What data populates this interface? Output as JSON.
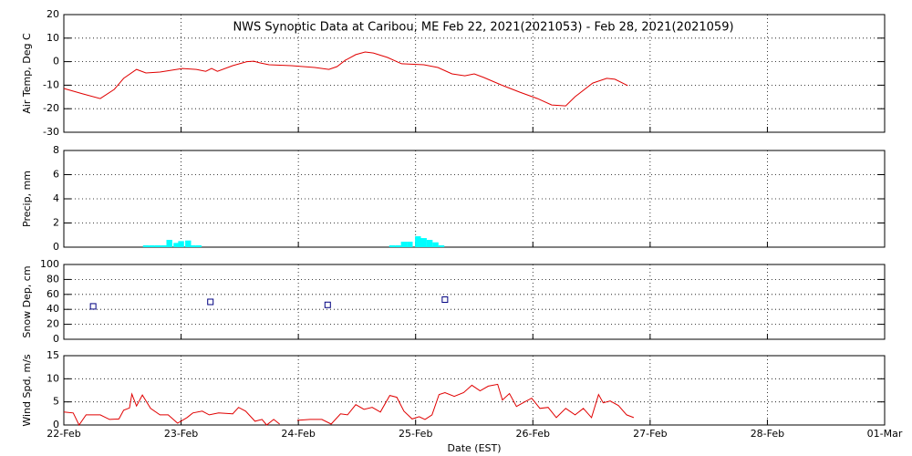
{
  "chart_data": [
    {
      "type": "line",
      "title": "NWS Synoptic Data at Caribou, ME   Feb 22, 2021(2021053) - Feb 28, 2021(2021059)",
      "ylabel": "Air Temp, Deg C",
      "ylim": [
        -30,
        20
      ],
      "yticks": [
        -30,
        -20,
        -10,
        0,
        10,
        20
      ],
      "grid": true,
      "series": [
        {
          "color": "#e00000",
          "x": [
            0,
            0.16,
            0.31,
            0.43,
            0.51,
            0.62,
            0.7,
            0.82,
            1.01,
            1.13,
            1.21,
            1.26,
            1.31,
            1.44,
            1.56,
            1.62,
            1.67,
            1.75,
            1.94,
            2.14,
            2.26,
            2.33,
            2.4,
            2.49,
            2.57,
            2.64,
            2.76,
            2.88,
            3.07,
            3.19,
            3.31,
            3.42,
            3.5,
            3.58,
            3.73,
            3.89,
            4.04,
            4.16,
            4.28,
            4.36,
            4.51,
            4.63,
            4.7,
            4.81
          ],
          "values": [
            -11.4,
            -13.7,
            -15.7,
            -11.8,
            -7.1,
            -3.3,
            -4.8,
            -4.4,
            -2.9,
            -3.3,
            -4.1,
            -2.9,
            -4.1,
            -1.7,
            0,
            0.2,
            -0.5,
            -1.3,
            -1.7,
            -2.5,
            -3.3,
            -2.1,
            0.6,
            3,
            4.1,
            3.7,
            1.8,
            -0.9,
            -1.3,
            -2.5,
            -5.2,
            -6,
            -5.2,
            -6.7,
            -9.9,
            -13,
            -15.7,
            -18.4,
            -18.8,
            -14.9,
            -9.1,
            -7.1,
            -7.5,
            -10.2
          ]
        }
      ]
    },
    {
      "type": "bar",
      "ylabel": "Precip, mm",
      "ylim": [
        0,
        8
      ],
      "yticks": [
        0,
        2,
        4,
        6,
        8
      ],
      "grid": true,
      "series": [
        {
          "color": "#00ffff",
          "x": [
            0.7,
            0.75,
            0.8,
            0.85,
            0.9,
            0.96,
            1.0,
            1.06,
            1.1,
            1.15,
            2.8,
            2.85,
            2.9,
            2.95,
            3.02,
            3.07,
            3.12,
            3.17,
            3.22
          ],
          "values": [
            0.15,
            0.15,
            0.15,
            0.15,
            0.6,
            0.35,
            0.5,
            0.55,
            0.15,
            0.15,
            0.15,
            0.15,
            0.45,
            0.45,
            0.9,
            0.75,
            0.6,
            0.4,
            0.15
          ]
        }
      ]
    },
    {
      "type": "scatter",
      "ylabel": "Snow Dep, cm",
      "ylim": [
        0,
        100
      ],
      "yticks": [
        0,
        20,
        40,
        60,
        80,
        100
      ],
      "grid": true,
      "series": [
        {
          "color": "#000080",
          "x": [
            0.25,
            1.25,
            2.25,
            3.25
          ],
          "values": [
            44,
            50,
            46,
            53
          ]
        }
      ]
    },
    {
      "type": "line",
      "ylabel": "Wind Spd, m/s",
      "xlabel": "Date (EST)",
      "ylim": [
        0,
        15
      ],
      "yticks": [
        0,
        5,
        10,
        15
      ],
      "grid": true,
      "xlim": [
        0,
        7
      ],
      "xticks": [
        {
          "value": 0,
          "label": "22-Feb"
        },
        {
          "value": 1,
          "label": "23-Feb"
        },
        {
          "value": 2,
          "label": "24-Feb"
        },
        {
          "value": 3,
          "label": "25-Feb"
        },
        {
          "value": 4,
          "label": "26-Feb"
        },
        {
          "value": 5,
          "label": "27-Feb"
        },
        {
          "value": 6,
          "label": "28-Feb"
        },
        {
          "value": 7,
          "label": "01-Mar"
        }
      ],
      "series": [
        {
          "color": "#e00000",
          "x": [
            0,
            0.08,
            0.13,
            0.19,
            0.31,
            0.39,
            0.47,
            0.51,
            0.56,
            0.58,
            0.62,
            0.67,
            0.74,
            0.82,
            0.89,
            0.97,
            1.05,
            1.1,
            1.18,
            1.24,
            1.32,
            1.44,
            1.49,
            1.55,
            1.63,
            1.69,
            1.73,
            1.79,
            1.84,
            1.92,
            1.99,
            2.1,
            2.2,
            2.28,
            2.36,
            2.42,
            2.49,
            2.56,
            2.63,
            2.7,
            2.78,
            2.84,
            2.9,
            2.97,
            3.03,
            3.08,
            3.14,
            3.2,
            3.25,
            3.33,
            3.41,
            3.48,
            3.55,
            3.62,
            3.7,
            3.74,
            3.8,
            3.86,
            3.93,
            3.99,
            4.06,
            4.13,
            4.2,
            4.28,
            4.36,
            4.43,
            4.5,
            4.56,
            4.6,
            4.66,
            4.73,
            4.8,
            4.86
          ],
          "values": [
            2.8,
            2.6,
            0,
            2.2,
            2.2,
            1.2,
            1.3,
            3.2,
            3.7,
            6.7,
            4.1,
            6.5,
            3.6,
            2.2,
            2.2,
            0.4,
            1.6,
            2.6,
            3,
            2.2,
            2.6,
            2.4,
            3.8,
            3,
            0.8,
            1.2,
            0,
            1.2,
            0.2,
            null,
            1,
            1.2,
            1.2,
            0.2,
            2.4,
            2.2,
            4.4,
            3.4,
            3.8,
            2.8,
            6.4,
            6,
            3,
            1.3,
            1.8,
            1.2,
            2.2,
            6.6,
            7,
            6.2,
            7,
            8.6,
            7.4,
            8.4,
            8.8,
            5.4,
            6.8,
            4,
            5,
            5.8,
            3.6,
            3.8,
            1.6,
            3.6,
            2.2,
            3.6,
            1.6,
            6.6,
            4.8,
            5.2,
            4.2,
            2.2,
            1.6
          ]
        }
      ]
    }
  ]
}
